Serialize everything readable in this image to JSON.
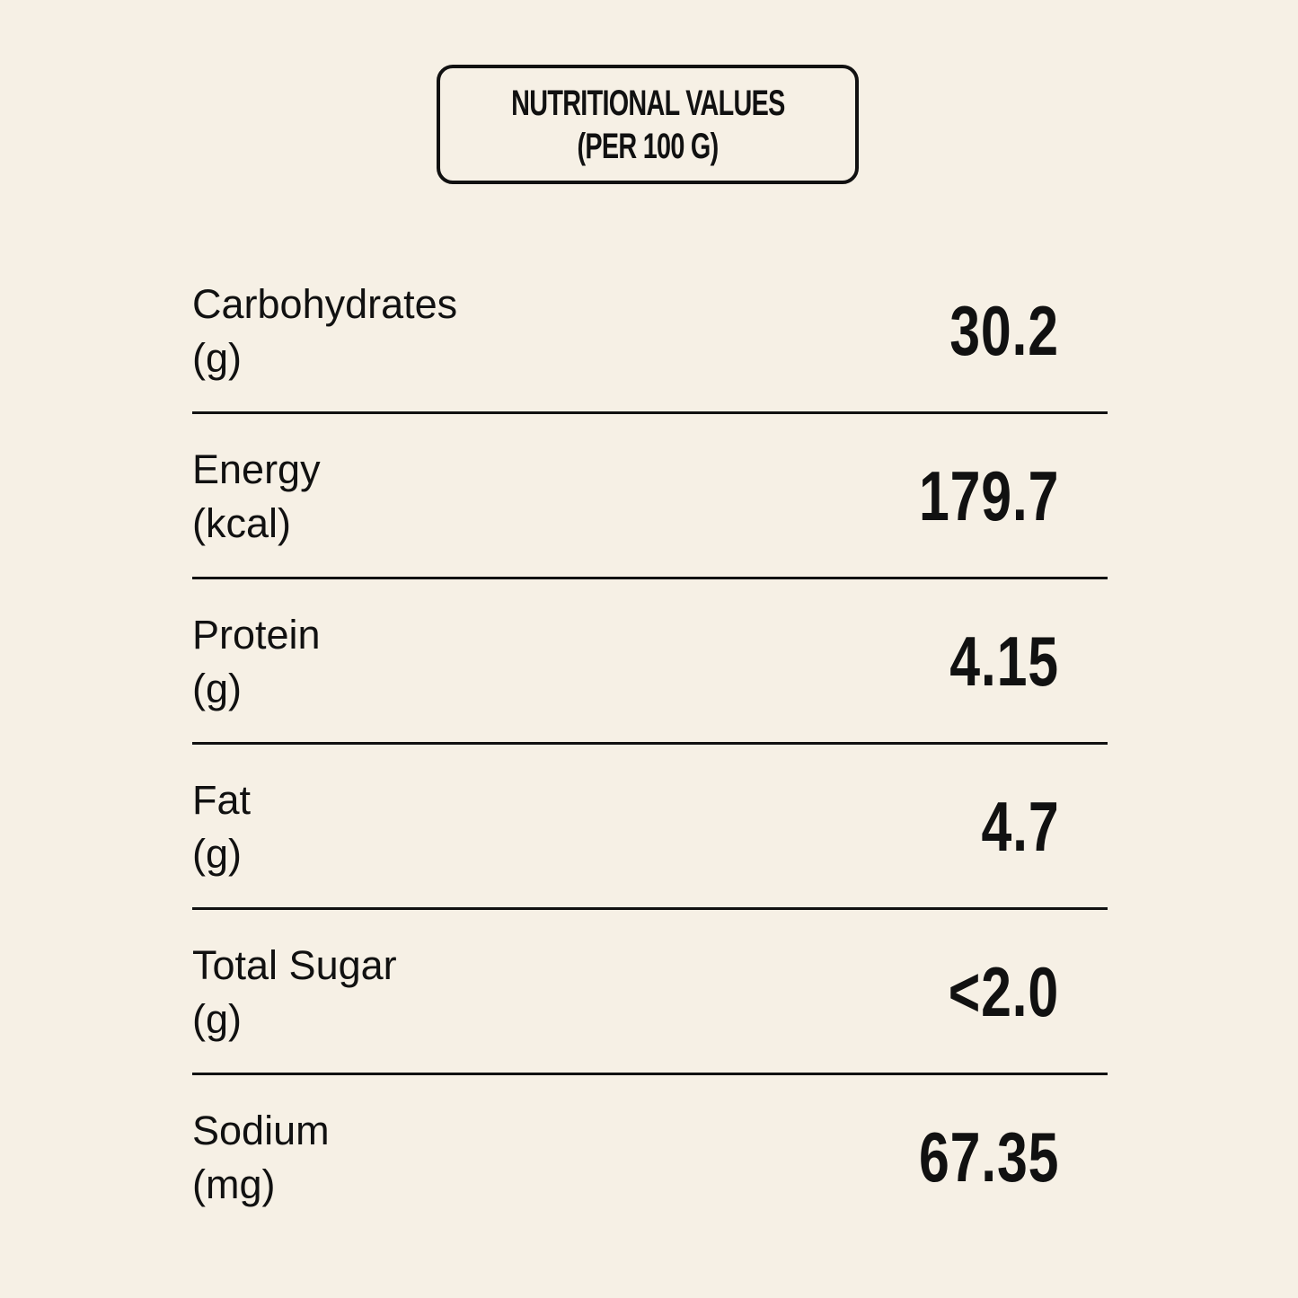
{
  "header": {
    "title_line1": "NUTRITIONAL VALUES",
    "title_line2": "(PER 100 G)"
  },
  "nutrients": [
    {
      "name": "Carbohydrates",
      "unit": "(g)",
      "value": "30.2"
    },
    {
      "name": "Energy",
      "unit": "(kcal)",
      "value": "179.7"
    },
    {
      "name": "Protein",
      "unit": "(g)",
      "value": "4.15"
    },
    {
      "name": "Fat",
      "unit": "(g)",
      "value": "4.7"
    },
    {
      "name": "Total Sugar",
      "unit": "(g)",
      "value": "<2.0"
    },
    {
      "name": "Sodium",
      "unit": "(mg)",
      "value": "67.35"
    }
  ]
}
